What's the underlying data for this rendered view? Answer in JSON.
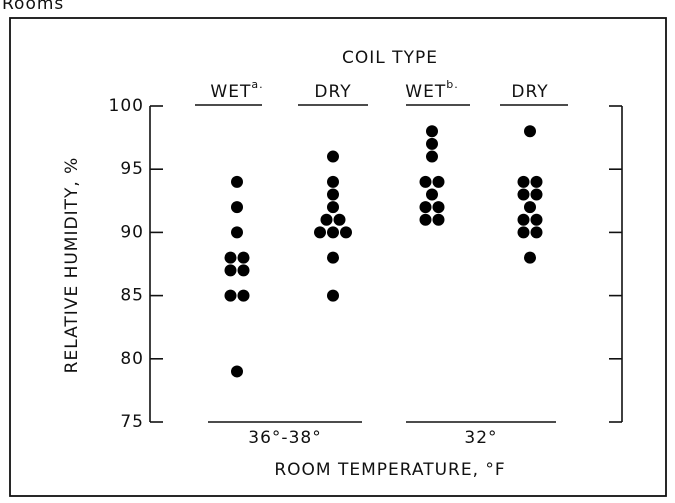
{
  "header": "Rooms",
  "chart_data": {
    "type": "scatter",
    "title": "COIL TYPE",
    "ylabel": "RELATIVE HUMIDITY, %",
    "xlabel": "ROOM TEMPERATURE, °F",
    "ylim": [
      75,
      100
    ],
    "yticks": [
      75,
      80,
      85,
      90,
      95,
      100
    ],
    "color": "#000000",
    "groups": [
      {
        "name": "WET",
        "note": "a.",
        "values": [
          94,
          92,
          90,
          88,
          88,
          87,
          87,
          85,
          85,
          79
        ]
      },
      {
        "name": "DRY",
        "values": [
          96,
          94,
          93,
          92,
          91,
          91,
          90,
          90,
          90,
          88,
          85
        ]
      },
      {
        "name": "WET",
        "note": "b.",
        "values": [
          98,
          97,
          96,
          94,
          94,
          93,
          92,
          92,
          91,
          91
        ]
      },
      {
        "name": "DRY",
        "values": [
          98,
          94,
          94,
          93,
          93,
          92,
          91,
          91,
          90,
          90,
          88
        ]
      }
    ],
    "temperatures": [
      "36°-38°",
      "32°"
    ]
  }
}
